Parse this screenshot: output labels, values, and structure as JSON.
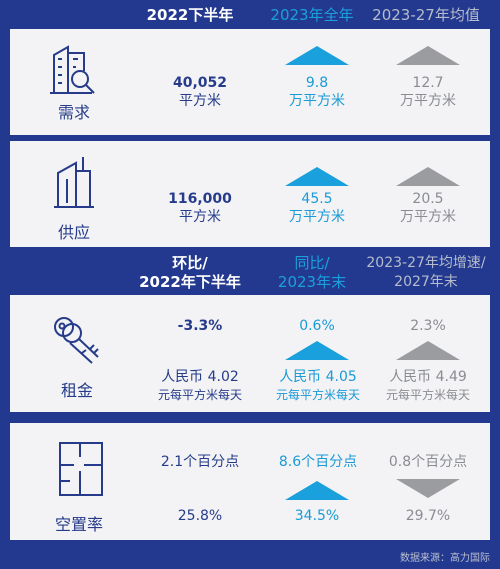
{
  "headers1": [
    "2022下半年",
    "2023年全年",
    "2023-27年均值"
  ],
  "demand": {
    "label": "需求",
    "c1": {
      "value": "40,052",
      "unit": "平方米"
    },
    "c2": {
      "value": "9.8",
      "unit": "万平方米"
    },
    "c3": {
      "value": "12.7",
      "unit": "万平方米"
    }
  },
  "supply": {
    "label": "供应",
    "c1": {
      "value": "116,000",
      "unit": "平方米"
    },
    "c2": {
      "value": "45.5",
      "unit": "万平方米"
    },
    "c3": {
      "value": "20.5",
      "unit": "万平方米"
    }
  },
  "headers2": {
    "c1": [
      "环比/",
      "2022年下半年"
    ],
    "c2": [
      "同比/",
      "2023年末"
    ],
    "c3": [
      "2023-27年均增速/",
      "2027年末"
    ]
  },
  "rent": {
    "label": "租金",
    "c1": {
      "change": "-3.3%",
      "value": "人民币 4.02",
      "unit": "元每平方米每天"
    },
    "c2": {
      "change": "0.6%",
      "value": "人民币 4.05",
      "unit": "元每平方米每天"
    },
    "c3": {
      "change": "2.3%",
      "value": "人民币 4.49",
      "unit": "元每平方米每天"
    }
  },
  "vacancy": {
    "label": "空置率",
    "c1": {
      "change": "2.1个百分点",
      "value": "25.8%"
    },
    "c2": {
      "change": "8.6个百分点",
      "value": "34.5%"
    },
    "c3": {
      "change": "0.8个百分点",
      "value": "29.7%"
    }
  },
  "footer": "数据来源：高力国际",
  "colors": {
    "navy": "#23398f",
    "blue": "#1aa0dc",
    "gray": "#9b9ca0",
    "card": "#f3f3f5"
  },
  "icons": [
    "building-search-icon",
    "skyscraper-icon",
    "keys-icon",
    "floor-plan-icon",
    "triangle-up-icon",
    "triangle-down-icon"
  ]
}
